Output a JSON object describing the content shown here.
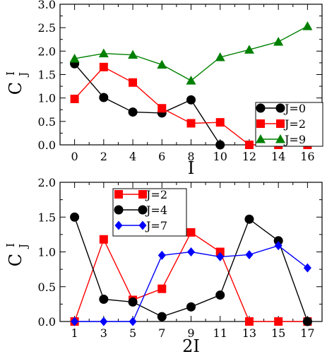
{
  "chart_data": [
    {
      "type": "line",
      "xlabel": "I",
      "ylabel": {
        "main": "C",
        "sub": "J",
        "sup": "I"
      },
      "xlim": [
        -1,
        17
      ],
      "ylim": [
        0,
        3
      ],
      "xticks": [
        0,
        2,
        4,
        6,
        8,
        10,
        12,
        14,
        16
      ],
      "yticks": [
        0.0,
        0.5,
        1.0,
        1.5,
        2.0,
        2.5,
        3.0
      ],
      "ytick_labels": [
        "0.0",
        "0.5",
        "1.0",
        "1.5",
        "2.0",
        "2.5",
        "3.0"
      ],
      "legend_placement": "bottom-right",
      "grid": false,
      "series": [
        {
          "name": "J=0",
          "color": "#000000",
          "marker": "circle",
          "x": [
            0,
            2,
            4,
            6,
            8,
            10
          ],
          "y": [
            1.73,
            1.01,
            0.7,
            0.68,
            0.96,
            0.0
          ]
        },
        {
          "name": "J=2",
          "color": "#ff0000",
          "marker": "square",
          "x": [
            0,
            2,
            4,
            6,
            8,
            10,
            12,
            14,
            16
          ],
          "y": [
            0.98,
            1.66,
            1.33,
            0.78,
            0.46,
            0.48,
            0.0,
            0.0,
            0.0
          ]
        },
        {
          "name": "J=9",
          "color": "#008000",
          "marker": "triangle",
          "x": [
            0,
            2,
            4,
            6,
            8,
            10,
            12,
            14,
            16
          ],
          "y": [
            1.84,
            1.95,
            1.92,
            1.71,
            1.37,
            1.87,
            2.03,
            2.2,
            2.53
          ]
        }
      ]
    },
    {
      "type": "line",
      "xlabel": "2I",
      "ylabel": {
        "main": "C",
        "sub": "J",
        "sup": "I"
      },
      "xlim": [
        0,
        18
      ],
      "ylim": [
        0,
        2
      ],
      "xticks": [
        1,
        3,
        5,
        7,
        9,
        11,
        13,
        15,
        17
      ],
      "yticks": [
        0.0,
        0.5,
        1.0,
        1.5,
        2.0
      ],
      "ytick_labels": [
        "0.0",
        "0.5",
        "1.0",
        "1.5",
        "2.0"
      ],
      "legend_placement": "top-left",
      "grid": false,
      "series": [
        {
          "name": "J=2",
          "color": "#ff0000",
          "marker": "square",
          "x": [
            1,
            3,
            5,
            7,
            9,
            11,
            13,
            15,
            17
          ],
          "y": [
            0.0,
            1.18,
            0.31,
            0.47,
            1.28,
            1.0,
            0.0,
            0.0,
            0.0
          ]
        },
        {
          "name": "J=4",
          "color": "#000000",
          "marker": "circle",
          "x": [
            1,
            3,
            5,
            7,
            9,
            11,
            13,
            15,
            17
          ],
          "y": [
            1.5,
            0.32,
            0.28,
            0.07,
            0.21,
            0.38,
            1.47,
            1.16,
            0.0
          ]
        },
        {
          "name": "J=7",
          "color": "#0000ff",
          "marker": "diamond",
          "x": [
            1,
            3,
            5,
            7,
            9,
            11,
            13,
            15,
            17
          ],
          "y": [
            0.0,
            0.0,
            0.0,
            0.95,
            1.0,
            0.93,
            0.96,
            1.09,
            0.77
          ]
        }
      ]
    }
  ]
}
